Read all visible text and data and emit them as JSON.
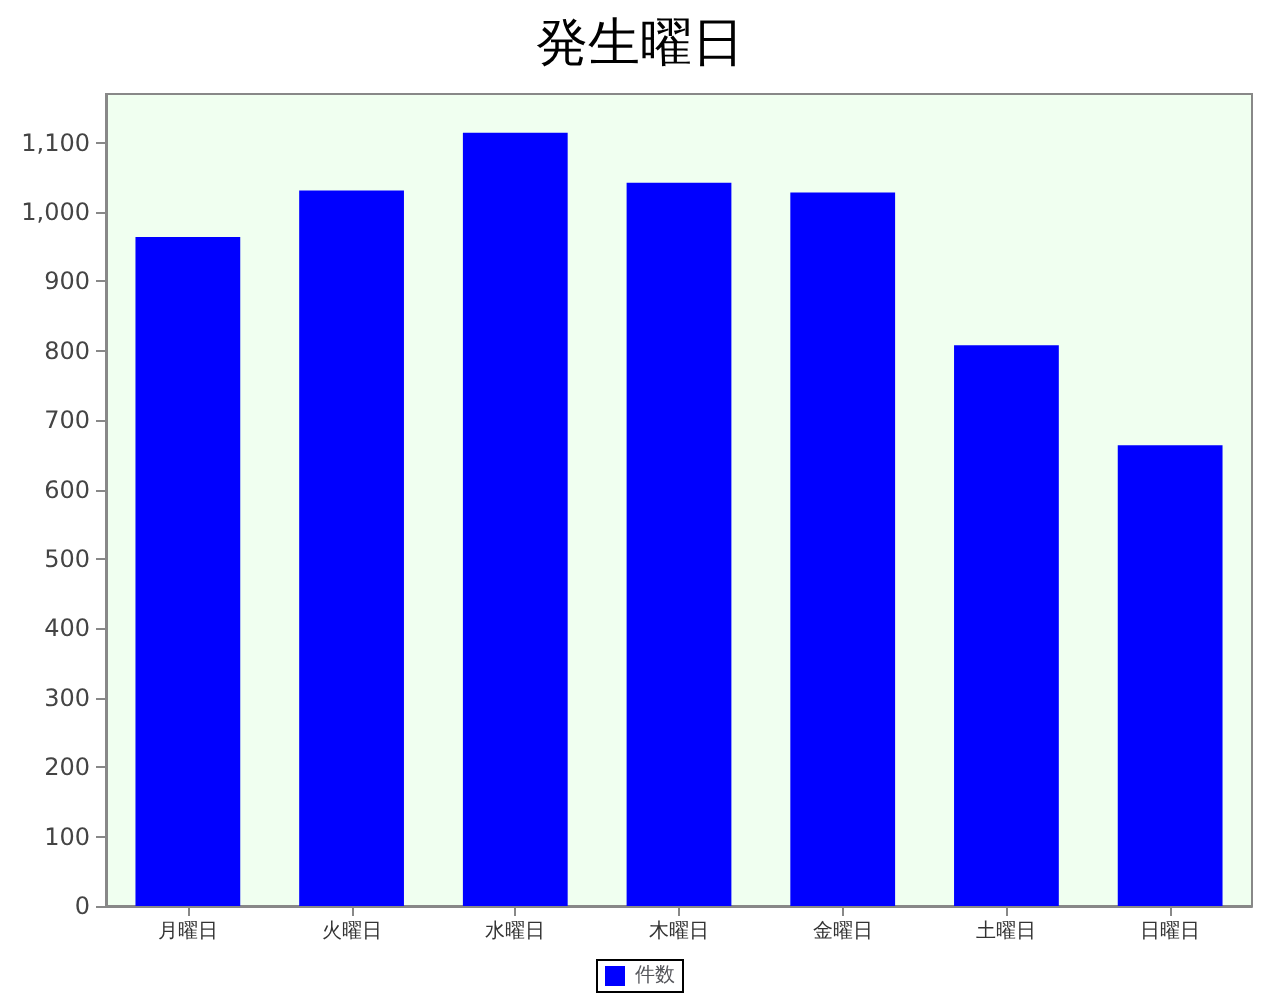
{
  "chart_data": {
    "type": "bar",
    "title": "発生曜日",
    "categories": [
      "月曜日",
      "火曜日",
      "水曜日",
      "木曜日",
      "金曜日",
      "土曜日",
      "日曜日"
    ],
    "series": [
      {
        "name": "件数",
        "color": "#0000ff",
        "values": [
          964,
          1031,
          1114,
          1042,
          1028,
          808,
          664
        ]
      }
    ],
    "ylim": [
      0,
      1170
    ],
    "yticks": [
      0,
      100,
      200,
      300,
      400,
      500,
      600,
      700,
      800,
      900,
      {
        "value": 1000,
        "label": "1,000"
      },
      {
        "value": 1100,
        "label": "1,100"
      }
    ],
    "grid": false,
    "legend": "bottom"
  }
}
